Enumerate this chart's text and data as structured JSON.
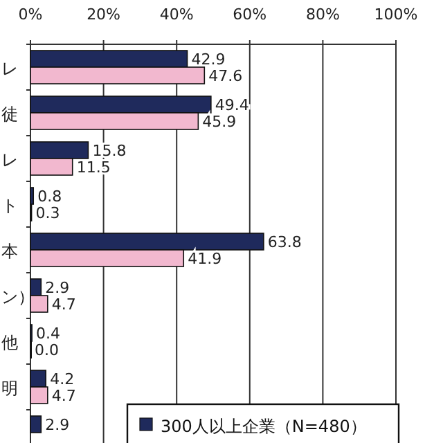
{
  "chart_data": {
    "type": "bar",
    "orientation": "horizontal",
    "categories": [
      "レ",
      "徒",
      "レ",
      "ト",
      "本",
      "ン）",
      "他",
      "明",
      null
    ],
    "series": [
      {
        "name": "300人以上企業（N=480）",
        "color": "#1f2a5c",
        "values": [
          42.9,
          49.4,
          15.8,
          0.8,
          63.8,
          2.9,
          0.4,
          4.2,
          2.9
        ],
        "value_labels": [
          "42.9",
          "49.4",
          "15.8",
          "0.8",
          "63.8",
          "2.9",
          "0.4",
          "4.2",
          "2.9"
        ]
      },
      {
        "color": "#f2b8cf",
        "values": [
          47.6,
          45.9,
          11.5,
          0.3,
          41.9,
          4.7,
          0.0,
          4.7,
          null
        ],
        "value_labels": [
          "47.6",
          "45.9",
          "11.5",
          "0.3",
          "41.9",
          "4.7",
          "0.0",
          "4.7",
          null
        ]
      }
    ],
    "xlim": [
      0,
      100
    ],
    "xticks": [
      {
        "value": 0,
        "label": "0%"
      },
      {
        "value": 20,
        "label": "20%"
      },
      {
        "value": 40,
        "label": "40%"
      },
      {
        "value": 60,
        "label": "60%"
      },
      {
        "value": 80,
        "label": "80%"
      },
      {
        "value": 100,
        "label": "100%"
      }
    ],
    "grid": "x",
    "legend": "bottom right"
  }
}
